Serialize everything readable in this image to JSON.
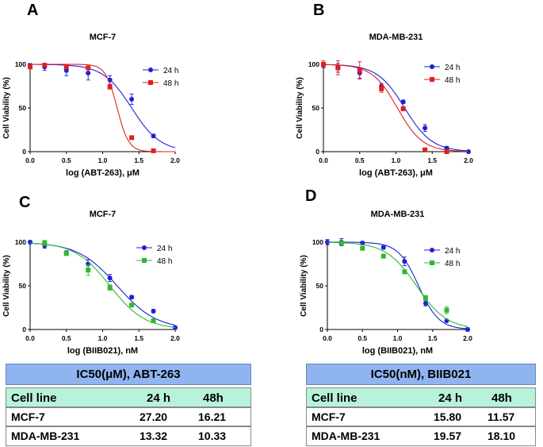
{
  "panel_labels": [
    "A",
    "B",
    "C",
    "D"
  ],
  "chart_data": [
    {
      "id": "A",
      "type": "line",
      "title": "MCF-7",
      "xlabel": "log (ABT-263), μM",
      "ylabel": "Cell Viability (%)",
      "xlim": [
        0,
        2
      ],
      "ylim": [
        0,
        100
      ],
      "xticks": [
        "0.0",
        "0.5",
        "1.0",
        "1.5",
        "2.0"
      ],
      "yticks": [
        "0",
        "50",
        "100"
      ],
      "legend_position": "top-right",
      "series": [
        {
          "name": "24 h",
          "color": "#1f1fd6",
          "marker": "circle",
          "x": [
            0,
            0.2,
            0.5,
            0.8,
            1.1,
            1.4,
            1.7
          ],
          "y": [
            98,
            97,
            93,
            90,
            82,
            60,
            18
          ],
          "err": [
            3,
            4,
            6,
            8,
            5,
            6,
            2
          ],
          "ic50": 1.4,
          "hill": 2.2
        },
        {
          "name": "48 h",
          "color": "#e01e1e",
          "marker": "square",
          "x": [
            0,
            0.2,
            0.5,
            0.8,
            1.1,
            1.4,
            1.7
          ],
          "y": [
            97,
            99,
            97,
            96,
            74,
            16,
            1
          ],
          "err": [
            2,
            2,
            2,
            2,
            2,
            1,
            1
          ],
          "ic50": 1.2,
          "hill": 5.5
        }
      ]
    },
    {
      "id": "B",
      "type": "line",
      "title": "MDA-MB-231",
      "xlabel": "log (ABT-263), μM",
      "ylabel": "Cell Viability (%)",
      "xlim": [
        0,
        2
      ],
      "ylim": [
        0,
        100
      ],
      "xticks": [
        "0.0",
        "0.5",
        "1.0",
        "1.5",
        "2.0"
      ],
      "yticks": [
        "0",
        "50",
        "100"
      ],
      "legend_position": "top-right",
      "series": [
        {
          "name": "24 h",
          "color": "#1f1fd6",
          "marker": "circle",
          "x": [
            0,
            0.2,
            0.5,
            0.8,
            1.1,
            1.4,
            1.7,
            2.0
          ],
          "y": [
            99,
            96,
            90,
            75,
            57,
            27,
            4,
            0
          ],
          "err": [
            3,
            5,
            6,
            3,
            2,
            4,
            2,
            1
          ],
          "ic50": 1.12,
          "hill": 2.3
        },
        {
          "name": "48 h",
          "color": "#e01e1e",
          "marker": "square",
          "x": [
            0,
            0.2,
            0.5,
            0.8,
            1.1,
            1.4,
            1.7
          ],
          "y": [
            100,
            96,
            93,
            72,
            49,
            2,
            0
          ],
          "err": [
            4,
            8,
            10,
            4,
            2,
            1,
            1
          ],
          "ic50": 1.02,
          "hill": 2.5
        }
      ]
    },
    {
      "id": "C",
      "type": "line",
      "title": "MCF-7",
      "xlabel": "log (BIIB021), nM",
      "ylabel": "Cell Viability (%)",
      "xlim": [
        0,
        2
      ],
      "ylim": [
        0,
        100
      ],
      "xticks": [
        "0.0",
        "0.5",
        "1.0",
        "1.5",
        "2.0"
      ],
      "yticks": [
        "0",
        "50",
        "100"
      ],
      "legend_position": "top-right",
      "series": [
        {
          "name": "24 h",
          "color": "#1f1fd6",
          "marker": "circle",
          "x": [
            0,
            0.2,
            0.5,
            0.8,
            1.1,
            1.4,
            1.7,
            2.0
          ],
          "y": [
            100,
            96,
            88,
            75,
            59,
            37,
            21,
            2
          ],
          "err": [
            2,
            3,
            2,
            5,
            4,
            2,
            2,
            2
          ],
          "ic50": 1.2,
          "hill": 1.6
        },
        {
          "name": "48 h",
          "color": "#2fb82f",
          "marker": "square",
          "x": [
            0.2,
            0.5,
            0.8,
            1.1,
            1.4,
            1.7
          ],
          "y": [
            99,
            87,
            68,
            48,
            28,
            10
          ],
          "err": [
            3,
            2,
            6,
            3,
            2,
            1
          ],
          "ic50": 1.1,
          "hill": 1.8
        }
      ]
    },
    {
      "id": "D",
      "type": "line",
      "title": "MDA-MB-231",
      "xlabel": "log (BIIB021), nM",
      "ylabel": "Cell Viability (%)",
      "xlim": [
        0,
        2
      ],
      "ylim": [
        0,
        100
      ],
      "xticks": [
        "0.0",
        "0.5",
        "1.0",
        "1.5",
        "2.0"
      ],
      "yticks": [
        "0",
        "50",
        "100"
      ],
      "legend_position": "top-right",
      "series": [
        {
          "name": "24 h",
          "color": "#1f1fd6",
          "marker": "circle",
          "x": [
            0,
            0.2,
            0.5,
            0.8,
            1.1,
            1.4,
            1.7,
            2.0
          ],
          "y": [
            100,
            100,
            99,
            94,
            78,
            30,
            10,
            0
          ],
          "err": [
            3,
            4,
            2,
            2,
            5,
            3,
            1,
            2
          ],
          "ic50": 1.3,
          "hill": 3.0
        },
        {
          "name": "48 h",
          "color": "#2fb82f",
          "marker": "square",
          "x": [
            0.2,
            0.5,
            0.8,
            1.1,
            1.4,
            1.7
          ],
          "y": [
            99,
            93,
            84,
            66,
            36,
            22
          ],
          "err": [
            2,
            2,
            2,
            2,
            3,
            4
          ],
          "ic50": 1.27,
          "hill": 2.0
        }
      ]
    }
  ],
  "tables": [
    {
      "title": "IC50(μM), ABT-263",
      "header": [
        "Cell line",
        "24 h",
        "48h"
      ],
      "rows": [
        [
          "MCF-7",
          "27.20",
          "16.21"
        ],
        [
          "MDA-MB-231",
          "13.32",
          "10.33"
        ]
      ]
    },
    {
      "title": "IC50(nM), BIIB021",
      "header": [
        "Cell line",
        "24 h",
        "48h"
      ],
      "rows": [
        [
          "MCF-7",
          "15.80",
          "11.57"
        ],
        [
          "MDA-MB-231",
          "19.57",
          "18.10"
        ]
      ]
    }
  ]
}
